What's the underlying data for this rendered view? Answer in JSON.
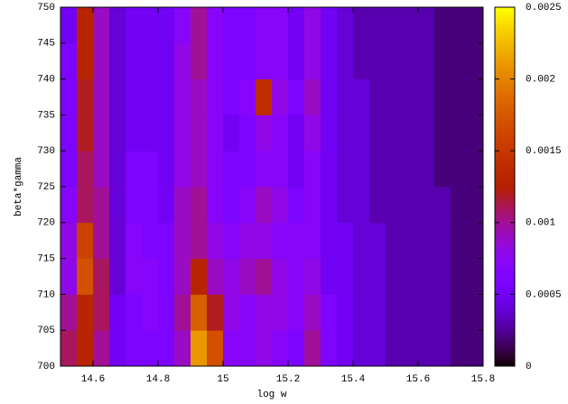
{
  "chart_data": {
    "type": "heatmap",
    "xlabel": "log w",
    "ylabel": "beta*gamma",
    "xbins": [
      14.5,
      14.55,
      14.6,
      14.65,
      14.7,
      14.75,
      14.8,
      14.85,
      14.9,
      14.95,
      15,
      15.05,
      15.1,
      15.15,
      15.2,
      15.25,
      15.3,
      15.35,
      15.4,
      15.45,
      15.5,
      15.55,
      15.6,
      15.65,
      15.7,
      15.75,
      15.8
    ],
    "ybins": [
      700,
      705,
      710,
      715,
      720,
      725,
      730,
      735,
      740,
      745,
      750
    ],
    "values": [
      [
        0.0011,
        0.0013,
        0.001,
        0.0005,
        0.0006,
        0.0006,
        0.0006,
        0.0009,
        0.0021,
        0.0017,
        0.0007,
        0.0007,
        0.0008,
        0.0007,
        0.0006,
        0.001,
        0.0006,
        0.0005,
        0.0004,
        0.0004,
        0.0003,
        0.0003,
        0.0003,
        0.0003,
        0.0002,
        0.0002
      ],
      [
        0.001,
        0.0013,
        0.0011,
        0.0005,
        0.0006,
        0.0007,
        0.0006,
        0.001,
        0.0018,
        0.0012,
        0.0008,
        0.0007,
        0.0008,
        0.0008,
        0.0007,
        0.0009,
        0.0006,
        0.0005,
        0.0004,
        0.0004,
        0.0003,
        0.0003,
        0.0003,
        0.0003,
        0.0002,
        0.0002
      ],
      [
        0.0008,
        0.0017,
        0.0011,
        0.0004,
        0.0007,
        0.0007,
        0.0006,
        0.0009,
        0.0013,
        0.0009,
        0.0008,
        0.0009,
        0.001,
        0.0008,
        0.0007,
        0.0008,
        0.0005,
        0.0005,
        0.0004,
        0.0004,
        0.0003,
        0.0003,
        0.0003,
        0.0003,
        0.0002,
        0.0002
      ],
      [
        0.0008,
        0.0016,
        0.001,
        0.0004,
        0.0007,
        0.0006,
        0.0006,
        0.0009,
        0.001,
        0.0008,
        0.0007,
        0.0008,
        0.0008,
        0.0007,
        0.0007,
        0.0007,
        0.0005,
        0.0005,
        0.0004,
        0.0004,
        0.0003,
        0.0003,
        0.0003,
        0.0003,
        0.0002,
        0.0002
      ],
      [
        0.0007,
        0.0011,
        0.001,
        0.0004,
        0.0006,
        0.0006,
        0.0005,
        0.0009,
        0.001,
        0.0007,
        0.0006,
        0.0007,
        0.0009,
        0.0008,
        0.0006,
        0.0007,
        0.0005,
        0.0004,
        0.0004,
        0.0003,
        0.0003,
        0.0003,
        0.0003,
        0.0003,
        0.0002,
        0.0002
      ],
      [
        0.0006,
        0.0011,
        0.0009,
        0.0004,
        0.0006,
        0.0006,
        0.0005,
        0.0008,
        0.0009,
        0.0007,
        0.0006,
        0.0006,
        0.0007,
        0.0007,
        0.0005,
        0.0007,
        0.0005,
        0.0004,
        0.0004,
        0.0003,
        0.0003,
        0.0003,
        0.0003,
        0.0002,
        0.0002,
        0.0002
      ],
      [
        0.0006,
        0.0012,
        0.0009,
        0.0004,
        0.0005,
        0.0005,
        0.0005,
        0.0008,
        0.0009,
        0.0007,
        0.0005,
        0.0006,
        0.0008,
        0.0007,
        0.0005,
        0.0008,
        0.0005,
        0.0004,
        0.0004,
        0.0003,
        0.0003,
        0.0003,
        0.0003,
        0.0002,
        0.0002,
        0.0002
      ],
      [
        0.0006,
        0.0012,
        0.0009,
        0.0004,
        0.0005,
        0.0005,
        0.0005,
        0.0008,
        0.0009,
        0.0007,
        0.0006,
        0.0007,
        0.0014,
        0.0008,
        0.0006,
        0.0009,
        0.0005,
        0.0004,
        0.0004,
        0.0003,
        0.0003,
        0.0003,
        0.0003,
        0.0002,
        0.0002,
        0.0002
      ],
      [
        0.0006,
        0.0013,
        0.0009,
        0.0004,
        0.0005,
        0.0005,
        0.0005,
        0.0008,
        0.001,
        0.0007,
        0.0006,
        0.0006,
        0.0007,
        0.0007,
        0.0005,
        0.0008,
        0.0005,
        0.0004,
        0.0003,
        0.0003,
        0.0003,
        0.0003,
        0.0003,
        0.0002,
        0.0002,
        0.0002
      ],
      [
        0.0005,
        0.0013,
        0.0009,
        0.0004,
        0.0005,
        0.0005,
        0.0005,
        0.0007,
        0.001,
        0.0007,
        0.0006,
        0.0006,
        0.0007,
        0.0007,
        0.0005,
        0.0008,
        0.0005,
        0.0004,
        0.0003,
        0.0003,
        0.0003,
        0.0003,
        0.0003,
        0.0002,
        0.0002,
        0.0002
      ]
    ],
    "xlim": [
      14.5,
      15.8
    ],
    "xticks": [
      14.6,
      14.8,
      15,
      15.2,
      15.4,
      15.6,
      15.8
    ],
    "ylim": [
      700,
      750
    ],
    "yticks": [
      700,
      705,
      710,
      715,
      720,
      725,
      730,
      735,
      740,
      745,
      750
    ],
    "zlim": [
      0,
      0.0025
    ],
    "zticks": [
      0,
      0.0005,
      0.001,
      0.0015,
      0.002,
      0.0025
    ],
    "palette": "gnuplot"
  }
}
